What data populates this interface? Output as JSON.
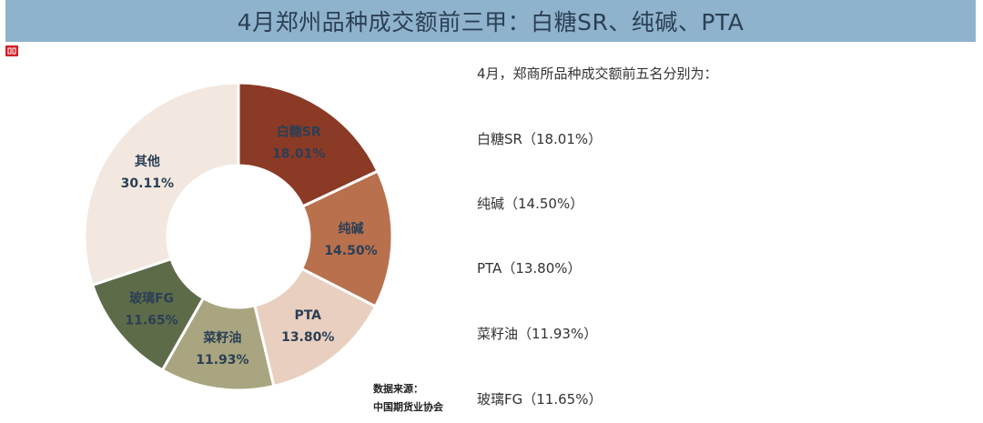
{
  "header": {
    "title": "4月郑州品种成交额前三甲：白糖SR、纯碱、PTA"
  },
  "source": {
    "line1": "数据来源：",
    "line2": "中国期货业协会"
  },
  "notes": {
    "intro": "4月，郑商所品种成交额前五名分别为：",
    "items": [
      {
        "name": "白糖SR",
        "value": "（18.01%）"
      },
      {
        "name": "纯碱",
        "value": "（14.50%）"
      },
      {
        "name": "PTA",
        "value": "（13.80%）"
      },
      {
        "name": "菜籽油",
        "value": "（11.93%）"
      },
      {
        "name": "玻璃FG",
        "value": "（11.65%）"
      }
    ]
  },
  "chart_data": {
    "type": "pie",
    "subtype": "donut",
    "title": "",
    "unit": "%",
    "slices": [
      {
        "name": "白糖SR",
        "value": 18.01,
        "label": "18.01%",
        "color": "#8b3a26"
      },
      {
        "name": "纯碱",
        "value": 14.5,
        "label": "14.50%",
        "color": "#b8704d"
      },
      {
        "name": "PTA",
        "value": 13.8,
        "label": "13.80%",
        "color": "#e9cfbf"
      },
      {
        "name": "菜籽油",
        "value": 11.93,
        "label": "11.93%",
        "color": "#a9a580"
      },
      {
        "name": "玻璃FG",
        "value": 11.65,
        "label": "11.65%",
        "color": "#5e6b49"
      },
      {
        "name": "其他",
        "value": 30.11,
        "label": "30.11%",
        "color": "#f2e8df"
      }
    ]
  }
}
